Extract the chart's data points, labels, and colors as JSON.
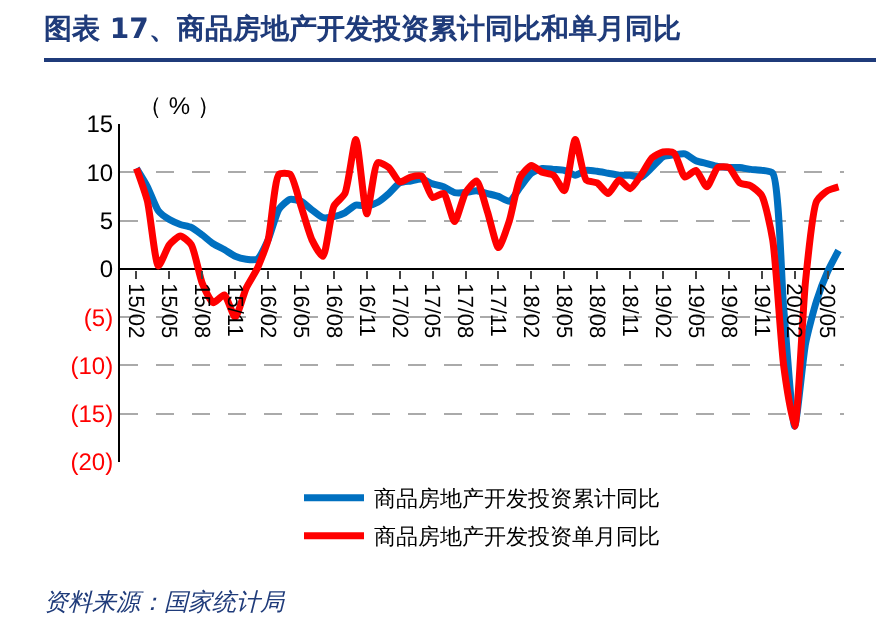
{
  "chart_data": {
    "type": "line",
    "title": "图表 17、商品房地产开发投资累计同比和单月同比",
    "ylabel": "（ % ）",
    "categories": [
      "15/02",
      null,
      null,
      "15/05",
      null,
      null,
      "15/08",
      null,
      null,
      "15/11",
      null,
      null,
      "16/02",
      null,
      null,
      "16/05",
      null,
      null,
      "16/08",
      null,
      null,
      "16/11",
      null,
      null,
      "17/02",
      null,
      null,
      "17/05",
      null,
      null,
      "17/08",
      null,
      null,
      "17/11",
      null,
      null,
      "18/02",
      null,
      null,
      "18/05",
      null,
      null,
      "18/08",
      null,
      null,
      "18/11",
      null,
      null,
      "19/02",
      null,
      null,
      "19/05",
      null,
      null,
      "19/08",
      null,
      null,
      "19/11",
      null,
      null,
      "20/02",
      null,
      null,
      "20/05",
      null
    ],
    "series": [
      {
        "name": "商品房地产开发投资累计同比",
        "color": "#0070c0",
        "values": [
          10.4,
          8.5,
          6,
          5.1,
          4.6,
          4.3,
          3.5,
          2.6,
          2,
          1.3,
          1,
          1,
          3,
          6.2,
          7.2,
          7,
          6.1,
          5.3,
          5.4,
          5.8,
          6.6,
          6.5,
          6.9,
          7.8,
          8.9,
          9.1,
          9.3,
          8.8,
          8.5,
          7.9,
          7.9,
          8.1,
          7.8,
          7.5,
          7,
          8.5,
          9.9,
          10.4,
          10.3,
          10.2,
          9.7,
          10.2,
          10.1,
          9.9,
          9.7,
          9.7,
          9.5,
          10.5,
          11.6,
          11.8,
          11.9,
          11.2,
          10.9,
          10.6,
          10.5,
          10.5,
          10.3,
          10.2,
          9.9,
          -4,
          -16.3,
          -7.7,
          -3.3,
          -0.3,
          1.9
        ]
      },
      {
        "name": "商品房地产开发投资单月同比",
        "color": "#ff0000",
        "values": [
          10.4,
          7,
          0.3,
          2.5,
          3.4,
          2.5,
          -1.5,
          -3.5,
          -2.7,
          -5,
          -2,
          0,
          3,
          9.8,
          9.8,
          6.5,
          3,
          1.3,
          6.5,
          7.8,
          13.4,
          5.7,
          11,
          10.5,
          9,
          9.5,
          9.6,
          7.4,
          7.8,
          4.9,
          7.9,
          9.1,
          5.9,
          2.2,
          5,
          9.5,
          10.7,
          10,
          9.7,
          8.1,
          13.4,
          9.2,
          8.9,
          7.8,
          9.2,
          8.3,
          9.7,
          11.5,
          12.1,
          12,
          9.5,
          10.2,
          8.5,
          10.5,
          10.5,
          8.9,
          8.6,
          7.6,
          3,
          -10,
          -16.3,
          -1.2,
          7,
          8.1,
          8.5
        ]
      }
    ],
    "ylim": [
      -20,
      15
    ],
    "yticks": [
      15,
      10,
      5,
      0,
      {
        "value": -5,
        "label": "(5)"
      },
      {
        "value": -10,
        "label": "(10)"
      },
      {
        "value": -15,
        "label": "(15)"
      },
      {
        "value": -20,
        "label": "(20)"
      }
    ],
    "grid": "y",
    "legend": "bottom",
    "line_style": "solid",
    "marker": "none",
    "annotations": [
      "资料来源：国家统计局"
    ]
  }
}
